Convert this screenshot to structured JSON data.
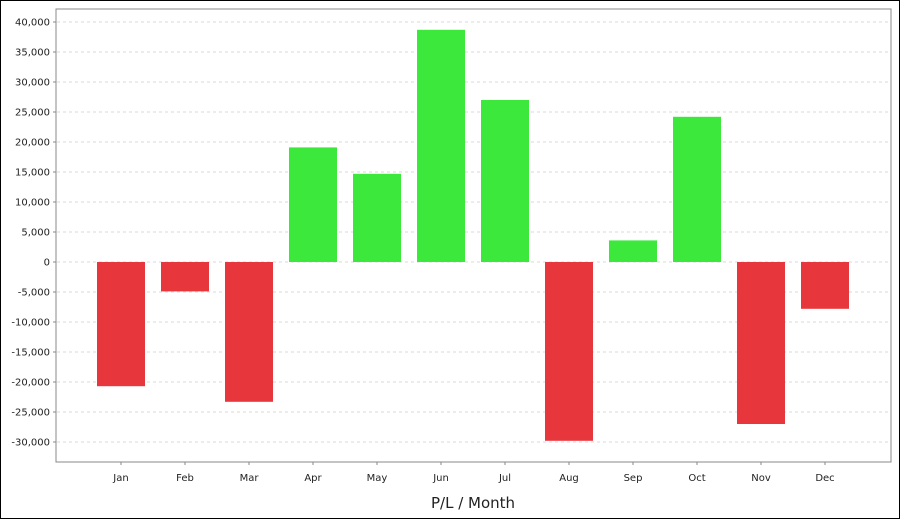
{
  "chart_data": {
    "type": "bar",
    "xlabel": "P/L / Month",
    "ylabel": "",
    "categories": [
      "Jan",
      "Feb",
      "Mar",
      "Apr",
      "May",
      "Jun",
      "Jul",
      "Aug",
      "Sep",
      "Oct",
      "Nov",
      "Dec"
    ],
    "values": [
      -20700,
      -4900,
      -23300,
      19100,
      14700,
      38700,
      27000,
      -29800,
      3600,
      24200,
      -27000,
      -7800
    ],
    "ylim": [
      -33000,
      40000
    ],
    "yticks": [
      40000,
      35000,
      30000,
      25000,
      20000,
      15000,
      10000,
      5000,
      0,
      -5000,
      -10000,
      -15000,
      -20000,
      -25000,
      -30000
    ],
    "ytick_labels": [
      "40,000",
      "35,000",
      "30,000",
      "25,000",
      "20,000",
      "15,000",
      "10,000",
      "5,000",
      "0",
      "-5,000",
      "-10,000",
      "-15,000",
      "-20,000",
      "-25,000",
      "-30,000"
    ],
    "grid": true,
    "colors": {
      "positive": "#3de83d",
      "negative": "#e8363d",
      "grid": "#d9d9d9",
      "axis": "#888888"
    }
  }
}
